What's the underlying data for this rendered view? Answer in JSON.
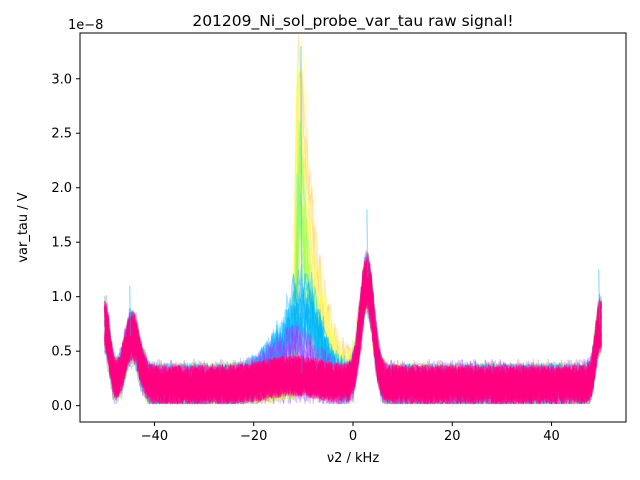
{
  "chart_data": {
    "type": "line",
    "title": "201209_Ni_sol_probe_var_tau raw signal!",
    "xlabel": "ν2 / kHz",
    "ylabel": "var_tau / V",
    "y_offset_label": "1e−8",
    "xlim": [
      -55,
      55
    ],
    "ylim": [
      -0.15,
      3.42
    ],
    "x_ticks": [
      -40,
      -20,
      0,
      20,
      40
    ],
    "x_tick_labels": [
      "−40",
      "−20",
      "0",
      "20",
      "40"
    ],
    "y_ticks": [
      0.0,
      0.5,
      1.0,
      1.5,
      2.0,
      2.5,
      3.0
    ],
    "y_tick_labels": [
      "0.0",
      "0.5",
      "1.0",
      "1.5",
      "2.0",
      "2.5",
      "3.0"
    ],
    "grid": false,
    "legend": "none",
    "x_range_data": [
      -50,
      50
    ],
    "envelope_x": [
      -50,
      -48,
      -46,
      -44,
      -42,
      -40,
      -35,
      -30,
      -25,
      -20,
      -15,
      -12,
      -11,
      -10,
      -9,
      -8,
      -6,
      -4,
      -2,
      0,
      1,
      2,
      3,
      4,
      5,
      6,
      8,
      10,
      15,
      20,
      25,
      30,
      35,
      40,
      44,
      46,
      48,
      49,
      50
    ],
    "series": [
      {
        "color": "#ffff55",
        "peak_x": -10.5,
        "peak": 3.3,
        "base": 0.2
      },
      {
        "color": "#b8ff30",
        "peak_x": -11,
        "peak": 2.7,
        "base": 0.2
      },
      {
        "color": "#00b4ff",
        "peak_x": -10,
        "peak": 1.15,
        "base": 0.25
      },
      {
        "color": "#ff0080",
        "peak_x": 2.5,
        "peak": 1.4,
        "base": 0.25
      }
    ],
    "features": [
      {
        "x": -45,
        "y": 1.1
      },
      {
        "x": -10.5,
        "y": 3.3
      },
      {
        "x": 2.8,
        "y": 1.8
      },
      {
        "x": 49.5,
        "y": 1.25
      }
    ]
  }
}
